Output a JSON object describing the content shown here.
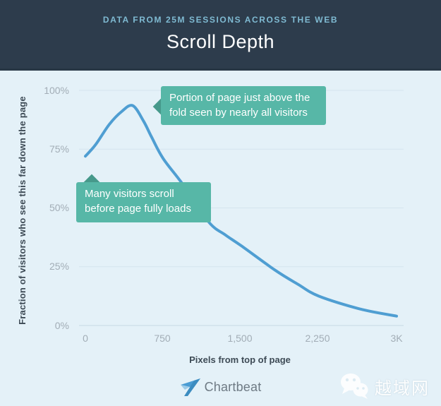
{
  "header": {
    "kicker": "DATA FROM 25M SESSIONS ACROSS THE WEB",
    "title": "Scroll Depth"
  },
  "chart_data": {
    "type": "line",
    "title": "Scroll Depth",
    "subtitle": "Data from 25M sessions across the web",
    "xlabel": "Pixels from top of page",
    "ylabel": "Fraction of visitors who see this far down the page",
    "xlim": [
      0,
      3000
    ],
    "ylim": [
      0,
      100
    ],
    "grid": "horizontal",
    "legend": "none",
    "line_color": "#4f9ed2",
    "x_ticks": [
      {
        "value": 0,
        "label": "0"
      },
      {
        "value": 750,
        "label": "750"
      },
      {
        "value": 1500,
        "label": "1,500"
      },
      {
        "value": 2250,
        "label": "2,250"
      },
      {
        "value": 3000,
        "label": "3K"
      }
    ],
    "y_ticks": [
      {
        "value": 0,
        "label": "0%"
      },
      {
        "value": 25,
        "label": "25%"
      },
      {
        "value": 50,
        "label": "50%"
      },
      {
        "value": 75,
        "label": "75%"
      },
      {
        "value": 100,
        "label": "100%"
      }
    ],
    "series": [
      {
        "name": "scroll-depth",
        "x": [
          0,
          100,
          230,
          350,
          457,
          560,
          640,
          750,
          940,
          1190,
          1350,
          1500,
          1830,
          2050,
          2250,
          2650,
          3000
        ],
        "y": [
          72,
          77,
          85.5,
          91,
          93.5,
          87,
          80,
          71,
          60,
          44,
          38.5,
          34,
          23.5,
          17.5,
          12.5,
          7,
          4
        ]
      }
    ],
    "annotations": [
      {
        "lines": [
          "Portion of page just above the",
          "fold seen by nearly all visitors"
        ],
        "points_to": "peak of curve (~457 px, 93%)"
      },
      {
        "lines": [
          "Many visitors scroll",
          "before page fully loads"
        ],
        "points_to": "start of curve (0 px, 72%)"
      }
    ]
  },
  "footer": {
    "brand": "Chartbeat"
  },
  "watermark": {
    "text": "越域网"
  },
  "colors": {
    "header_bg": "#2d3c4c",
    "kicker_text": "#7fbad2",
    "chart_bg": "#e4f1f8",
    "gridline": "#d4e4ee",
    "axis_line": "#c6d9e4",
    "tick_text": "#a2adb6",
    "axis_title_text": "#3d4a55",
    "line": "#4f9ed2",
    "callout_bg": "#57b7a7",
    "callout_arrow": "#46998b",
    "brand_text": "#6e7a84"
  }
}
